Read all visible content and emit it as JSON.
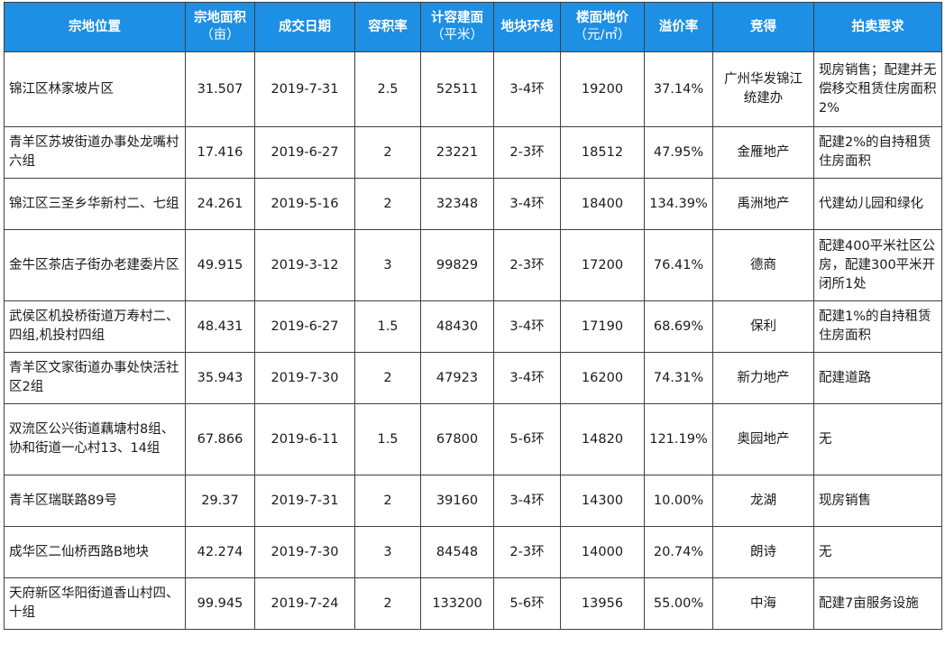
{
  "header": {
    "location": "宗地位置",
    "area": "宗地面积",
    "area_unit": "（亩）",
    "date": "成交日期",
    "plot_ratio": "容积率",
    "floor_area": "计容建面",
    "floor_area_unit": "（平米）",
    "ring": "地块环线",
    "floor_price": "楼面地价",
    "floor_price_unit": "（元/㎡）",
    "premium": "溢价率",
    "winner": "竞得",
    "requirement": "拍卖要求"
  },
  "rows": [
    {
      "location": "锦江区林家坡片区",
      "area": "31.507",
      "date": "2019-7-31",
      "plot_ratio": "2.5",
      "floor_area": "52511",
      "ring": "3-4环",
      "floor_price": "19200",
      "premium": "37.14%",
      "winner": "广州华发锦江统建办",
      "requirement": "现房销售；配建并无偿移交租赁住房面积2%"
    },
    {
      "location": "青羊区苏坡街道办事处龙嘴村六组",
      "area": "17.416",
      "date": "2019-6-27",
      "plot_ratio": "2",
      "floor_area": "23221",
      "ring": "2-3环",
      "floor_price": "18512",
      "premium": "47.95%",
      "winner": "金雁地产",
      "requirement": "配建2%的自持租赁住房面积"
    },
    {
      "location": "锦江区三圣乡华新村二、七组",
      "area": "24.261",
      "date": "2019-5-16",
      "plot_ratio": "2",
      "floor_area": "32348",
      "ring": "3-4环",
      "floor_price": "18400",
      "premium": "134.39%",
      "winner": "禹洲地产",
      "requirement": "代建幼儿园和绿化"
    },
    {
      "location": "金牛区茶店子街办老建委片区",
      "area": "49.915",
      "date": "2019-3-12",
      "plot_ratio": "3",
      "floor_area": "99829",
      "ring": "2-3环",
      "floor_price": "17200",
      "premium": "76.41%",
      "winner": "德商",
      "requirement": "配建400平米社区公房，配建300平米开闭所1处"
    },
    {
      "location": "武侯区机投桥街道万寿村二、四组,机投村四组",
      "area": "48.431",
      "date": "2019-6-27",
      "plot_ratio": "1.5",
      "floor_area": "48430",
      "ring": "3-4环",
      "floor_price": "17190",
      "premium": "68.69%",
      "winner": "保利",
      "requirement": "配建1%的自持租赁住房面积"
    },
    {
      "location": "青羊区文家街道办事处快活社区2组",
      "area": "35.943",
      "date": "2019-7-30",
      "plot_ratio": "2",
      "floor_area": "47923",
      "ring": "3-4环",
      "floor_price": "16200",
      "premium": "74.31%",
      "winner": "新力地产",
      "requirement": "配建道路"
    },
    {
      "location": "双流区公兴街道藕塘村8组、协和街道一心村13、14组",
      "area": "67.866",
      "date": "2019-6-11",
      "plot_ratio": "1.5",
      "floor_area": "67800",
      "ring": "5-6环",
      "floor_price": "14820",
      "premium": "121.19%",
      "winner": "奥园地产",
      "requirement": "无"
    },
    {
      "location": "青羊区瑞联路89号",
      "area": "29.37",
      "date": "2019-7-31",
      "plot_ratio": "2",
      "floor_area": "39160",
      "ring": "3-4环",
      "floor_price": "14300",
      "premium": "10.00%",
      "winner": "龙湖",
      "requirement": "现房销售"
    },
    {
      "location": "成华区二仙桥西路B地块",
      "area": "42.274",
      "date": "2019-7-30",
      "plot_ratio": "3",
      "floor_area": "84548",
      "ring": "2-3环",
      "floor_price": "14000",
      "premium": "20.74%",
      "winner": "朗诗",
      "requirement": "无"
    },
    {
      "location": "天府新区华阳街道香山村四、十组",
      "area": "99.945",
      "date": "2019-7-24",
      "plot_ratio": "2",
      "floor_area": "133200",
      "ring": "5-6环",
      "floor_price": "13956",
      "premium": "55.00%",
      "winner": "中海",
      "requirement": "配建7亩服务设施"
    }
  ],
  "colors": {
    "header_bg": "#1d8fe4",
    "header_text": "#ffffff",
    "border": "#3f3f3f"
  }
}
